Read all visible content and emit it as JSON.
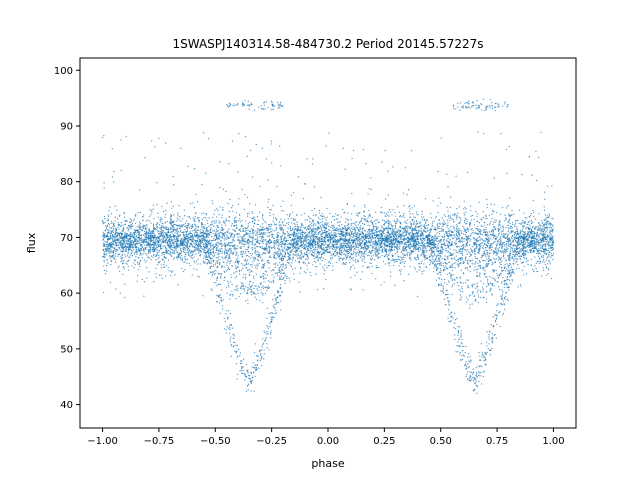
{
  "chart_data": {
    "type": "scatter",
    "title": "1SWASPJ140314.58-484730.2 Period 20145.57227s",
    "xlabel": "phase",
    "ylabel": "flux",
    "xlim": [
      -1.1,
      1.1
    ],
    "ylim": [
      35.8,
      102.2
    ],
    "xticks": [
      -1.0,
      -0.75,
      -0.5,
      -0.25,
      0.0,
      0.25,
      0.5,
      0.75,
      1.0
    ],
    "xtick_labels": [
      "−1.00",
      "−0.75",
      "−0.50",
      "−0.25",
      "0.00",
      "0.25",
      "0.50",
      "0.75",
      "1.00"
    ],
    "yticks": [
      40,
      50,
      60,
      70,
      80,
      90,
      100
    ],
    "ytick_labels": [
      "40",
      "50",
      "60",
      "70",
      "80",
      "90",
      "100"
    ],
    "grid": false,
    "point_color": "#1f77b4",
    "components": {
      "baseline": {
        "flux": 69.5,
        "spread": 2.6,
        "phase_range": [
          -1.0,
          1.0
        ]
      },
      "primary_eclipse": {
        "center_phase": -0.35,
        "depth_min_flux": 44.0,
        "half_width": 0.2
      },
      "secondary_eclipse": {
        "center_phase": -0.35,
        "depth_min_flux": 60.5,
        "half_width": 0.2
      },
      "shallow_branch": {
        "center_phase": -0.35,
        "depth_min_flux": 64.5,
        "half_width": 0.17
      },
      "high_group": {
        "flux": 93.8,
        "phase_range": [
          -0.45,
          -0.2
        ]
      },
      "repeat_offset_phase": 1.0
    }
  }
}
